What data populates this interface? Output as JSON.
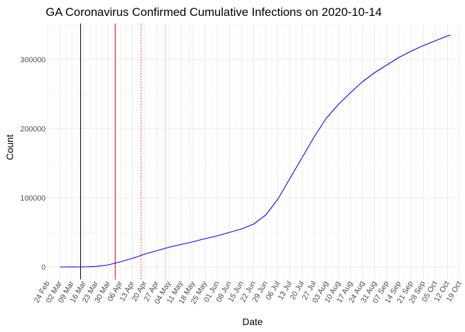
{
  "chart_data": {
    "type": "line",
    "title": "GA Coronavirus Confirmed Cumulative Infections on 2020-10-14",
    "xlabel": "Date",
    "ylabel": "Count",
    "x_range": [
      "2020-02-24",
      "2020-10-19"
    ],
    "ylim": [
      -18000,
      352000
    ],
    "x_ticks": [
      "2020-02-24",
      "2020-03-02",
      "2020-03-09",
      "2020-03-16",
      "2020-03-23",
      "2020-03-30",
      "2020-04-06",
      "2020-04-13",
      "2020-04-20",
      "2020-04-27",
      "2020-05-04",
      "2020-05-11",
      "2020-05-18",
      "2020-05-25",
      "2020-06-01",
      "2020-06-08",
      "2020-06-15",
      "2020-06-22",
      "2020-06-29",
      "2020-07-06",
      "2020-07-13",
      "2020-07-20",
      "2020-07-27",
      "2020-08-03",
      "2020-08-10",
      "2020-08-17",
      "2020-08-24",
      "2020-08-31",
      "2020-09-07",
      "2020-09-14",
      "2020-09-21",
      "2020-09-28",
      "2020-10-05",
      "2020-10-12",
      "2020-10-19"
    ],
    "x_tick_labels": [
      "24 Feb",
      "02 Mar",
      "09 Mar",
      "16 Mar",
      "23 Mar",
      "30 Mar",
      "06 Apr",
      "13 Apr",
      "20 Apr",
      "27 Apr",
      "04 May",
      "11 May",
      "18 May",
      "25 May",
      "01 Jun",
      "08 Jun",
      "15 Jun",
      "22 Jun",
      "29 Jun",
      "06 Jul",
      "13 Jul",
      "20 Jul",
      "27 Jul",
      "03 Aug",
      "10 Aug",
      "17 Aug",
      "24 Aug",
      "31 Aug",
      "07 Sep",
      "14 Sep",
      "21 Sep",
      "28 Sep",
      "05 Oct",
      "12 Oct",
      "19 Oct"
    ],
    "y_ticks": [
      0,
      100000,
      200000,
      300000
    ],
    "y_tick_labels": [
      "0",
      "100000",
      "200000",
      "300000"
    ],
    "grid": true,
    "series": [
      {
        "color": "#0000ff",
        "points": [
          [
            "2020-03-02",
            2
          ],
          [
            "2020-03-09",
            17
          ],
          [
            "2020-03-16",
            121
          ],
          [
            "2020-03-23",
            800
          ],
          [
            "2020-03-30",
            3000
          ],
          [
            "2020-04-06",
            7500
          ],
          [
            "2020-04-13",
            12500
          ],
          [
            "2020-04-20",
            18500
          ],
          [
            "2020-04-27",
            23500
          ],
          [
            "2020-05-04",
            28500
          ],
          [
            "2020-05-11",
            32500
          ],
          [
            "2020-05-18",
            36500
          ],
          [
            "2020-05-25",
            41000
          ],
          [
            "2020-06-01",
            45000
          ],
          [
            "2020-06-08",
            50000
          ],
          [
            "2020-06-15",
            55000
          ],
          [
            "2020-06-22",
            62000
          ],
          [
            "2020-06-29",
            75000
          ],
          [
            "2020-07-06",
            98000
          ],
          [
            "2020-07-13",
            128000
          ],
          [
            "2020-07-20",
            158000
          ],
          [
            "2020-07-27",
            188000
          ],
          [
            "2020-08-03",
            215000
          ],
          [
            "2020-08-10",
            235000
          ],
          [
            "2020-08-17",
            252000
          ],
          [
            "2020-08-24",
            268000
          ],
          [
            "2020-08-31",
            281000
          ],
          [
            "2020-09-07",
            292000
          ],
          [
            "2020-09-14",
            303000
          ],
          [
            "2020-09-21",
            312000
          ],
          [
            "2020-09-28",
            320000
          ],
          [
            "2020-10-05",
            327000
          ],
          [
            "2020-10-12",
            334000
          ],
          [
            "2020-10-14",
            335000
          ]
        ]
      }
    ],
    "reference_lines": [
      {
        "date": "2020-03-14",
        "color": "#000000",
        "style": "solid"
      },
      {
        "date": "2020-04-03",
        "color": "#ff0000",
        "style": "solid"
      },
      {
        "date": "2020-04-18",
        "color": "#ff0000",
        "style": "dotted"
      },
      {
        "date": "2020-05-02",
        "color": "#ffb6c1",
        "style": "solid"
      },
      {
        "date": "2020-05-16",
        "color": "#ffb6c1",
        "style": "dotted"
      }
    ]
  }
}
